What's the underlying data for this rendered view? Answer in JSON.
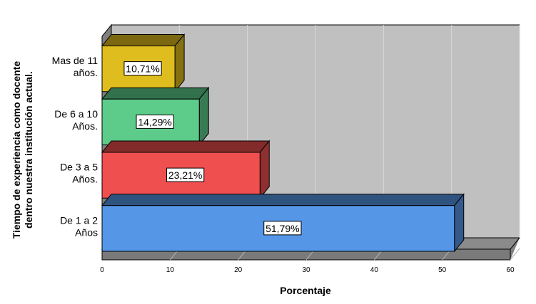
{
  "chart_data": {
    "type": "bar",
    "orientation": "horizontal",
    "style": "3d",
    "categories": [
      [
        "Mas de 11",
        "años."
      ],
      [
        "De 6 a 10",
        "Años."
      ],
      [
        "De 3 a 5",
        "Años."
      ],
      [
        "De 1 a 2",
        "Años"
      ]
    ],
    "values": [
      10.71,
      14.29,
      23.21,
      51.79
    ],
    "value_labels": [
      "10,71%",
      "14,29%",
      "23,21%",
      "51,79%"
    ],
    "colors": [
      "#e0bd1e",
      "#5dcb8a",
      "#ef4f4f",
      "#5596e6"
    ],
    "xlabel": "Porcentaje",
    "ylabel": [
      "Tiempo de experiencia como docente",
      "dentro nuestra institución actual."
    ],
    "xlim": [
      0,
      60
    ],
    "xticks": [
      0,
      10,
      20,
      30,
      40,
      50,
      60
    ],
    "grid": true,
    "legend": "none",
    "background_color": "#c0c0c0"
  }
}
